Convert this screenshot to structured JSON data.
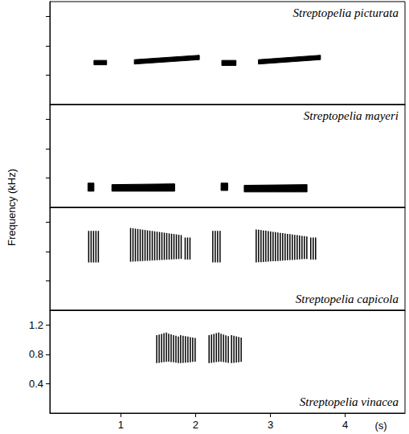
{
  "chart_data": [
    {
      "type": "spectrogram",
      "title": "Streptopelia picturata",
      "color": "#000000",
      "marker": "solid",
      "xlim": [
        0.05,
        4.8
      ],
      "ylim": [
        0,
        1.4
      ],
      "yticks": [
        0.4,
        0.8,
        1.2
      ],
      "tick_labels": false,
      "syllables": [
        {
          "t": [
            0.64,
            0.81
          ],
          "f_start": [
            0.54,
            0.6
          ],
          "f_end": [
            0.54,
            0.6
          ]
        },
        {
          "t": [
            1.18,
            2.05
          ],
          "f_start": [
            0.55,
            0.61
          ],
          "f_end": [
            0.61,
            0.67
          ]
        },
        {
          "t": [
            2.35,
            2.54
          ],
          "f_start": [
            0.53,
            0.6
          ],
          "f_end": [
            0.53,
            0.6
          ]
        },
        {
          "t": [
            2.84,
            3.67
          ],
          "f_start": [
            0.55,
            0.61
          ],
          "f_end": [
            0.61,
            0.67
          ]
        }
      ]
    },
    {
      "type": "spectrogram",
      "title": "Streptopelia mayeri",
      "color": "#000000",
      "marker": "solid",
      "xlim": [
        0.05,
        4.8
      ],
      "ylim": [
        0,
        1.4
      ],
      "yticks": [
        0.4,
        0.8,
        1.2
      ],
      "tick_labels": false,
      "syllables": [
        {
          "t": [
            0.56,
            0.64
          ],
          "f_start": [
            0.22,
            0.33
          ],
          "f_end": [
            0.22,
            0.33
          ]
        },
        {
          "t": [
            0.88,
            1.72
          ],
          "f_start": [
            0.22,
            0.31
          ],
          "f_end": [
            0.22,
            0.32
          ]
        },
        {
          "t": [
            2.34,
            2.43
          ],
          "f_start": [
            0.23,
            0.33
          ],
          "f_end": [
            0.23,
            0.33
          ]
        },
        {
          "t": [
            2.65,
            3.49
          ],
          "f_start": [
            0.21,
            0.3
          ],
          "f_end": [
            0.21,
            0.31
          ]
        }
      ]
    },
    {
      "type": "spectrogram",
      "title": "Streptopelia capicola",
      "color": "#000000",
      "marker": "pulsed",
      "xlim": [
        0.05,
        4.8
      ],
      "ylim": [
        0,
        1.4
      ],
      "yticks": [
        0.4,
        0.8,
        1.2
      ],
      "tick_labels": false,
      "syllables": [
        {
          "t": [
            0.57,
            0.7
          ],
          "f_start": [
            0.65,
            1.08
          ],
          "f_end": [
            0.65,
            1.08
          ]
        },
        {
          "t": [
            1.13,
            1.83
          ],
          "f_start": [
            0.66,
            1.12
          ],
          "f_end": [
            0.7,
            1.02
          ]
        },
        {
          "t": [
            1.86,
            1.94
          ],
          "f_start": [
            0.69,
            0.99
          ],
          "f_end": [
            0.69,
            0.99
          ]
        },
        {
          "t": [
            2.23,
            2.35
          ],
          "f_start": [
            0.65,
            1.08
          ],
          "f_end": [
            0.65,
            1.08
          ]
        },
        {
          "t": [
            2.81,
            3.51
          ],
          "f_start": [
            0.65,
            1.1
          ],
          "f_end": [
            0.7,
            1.0
          ]
        },
        {
          "t": [
            3.54,
            3.62
          ],
          "f_start": [
            0.69,
            0.99
          ],
          "f_end": [
            0.69,
            0.99
          ]
        }
      ]
    },
    {
      "type": "spectrogram",
      "title": "Streptopelia vinacea",
      "color": "#000000",
      "marker": "pulsed",
      "xlim": [
        0.05,
        4.8
      ],
      "ylim": [
        0,
        1.4
      ],
      "yticks": [
        0.4,
        0.8,
        1.2
      ],
      "xticks": [
        1,
        2,
        3,
        4
      ],
      "xlabel": "(s)",
      "ylabel": "Frequency (kHz)",
      "syllables": [
        {
          "t": [
            1.48,
            1.62
          ],
          "f_start": [
            0.68,
            1.06
          ],
          "f_end": [
            0.7,
            1.1
          ]
        },
        {
          "t": [
            1.64,
            1.78
          ],
          "f_start": [
            0.7,
            1.08
          ],
          "f_end": [
            0.68,
            1.04
          ]
        },
        {
          "t": [
            1.8,
            2.0
          ],
          "f_start": [
            0.68,
            1.06
          ],
          "f_end": [
            0.7,
            1.02
          ]
        },
        {
          "t": [
            2.18,
            2.32
          ],
          "f_start": [
            0.68,
            1.06
          ],
          "f_end": [
            0.7,
            1.1
          ]
        },
        {
          "t": [
            2.34,
            2.46
          ],
          "f_start": [
            0.7,
            1.08
          ],
          "f_end": [
            0.68,
            1.04
          ]
        },
        {
          "t": [
            2.48,
            2.64
          ],
          "f_start": [
            0.68,
            1.06
          ],
          "f_end": [
            0.7,
            1.02
          ]
        }
      ]
    }
  ]
}
